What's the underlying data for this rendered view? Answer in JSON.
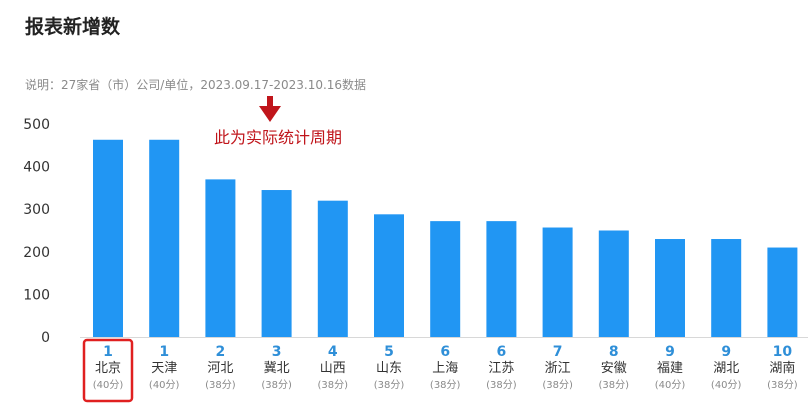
{
  "header": {
    "title": "报表新增数",
    "note": "说明：27家省（市）公司/单位，2023.09.17-2023.10.16数据"
  },
  "annotation": {
    "text": "此为实际统计周期",
    "color": "#c0151b"
  },
  "highlight": {
    "category": "北京",
    "color": "#e02020"
  },
  "chart_data": {
    "type": "bar",
    "categories": [
      "北京",
      "天津",
      "河北",
      "冀北",
      "山西",
      "山东",
      "上海",
      "江苏",
      "浙江",
      "安徽",
      "福建",
      "湖北",
      "湖南"
    ],
    "ranks": [
      "1",
      "1",
      "2",
      "3",
      "4",
      "5",
      "6",
      "6",
      "7",
      "8",
      "9",
      "9",
      "10"
    ],
    "scores": [
      "(40分)",
      "(40分)",
      "(38分)",
      "(38分)",
      "(38分)",
      "(38分)",
      "(38分)",
      "(38分)",
      "(38分)",
      "(38分)",
      "(40分)",
      "(40分)",
      "(38分)"
    ],
    "values": [
      463,
      463,
      370,
      345,
      320,
      288,
      272,
      272,
      257,
      250,
      230,
      230,
      210
    ],
    "yticks": [
      "0",
      "100",
      "200",
      "300",
      "400",
      "500"
    ],
    "ylim": [
      0,
      500
    ],
    "bar_color": "#2196f3",
    "rank_color": "#2f8fd8",
    "grid": false
  }
}
